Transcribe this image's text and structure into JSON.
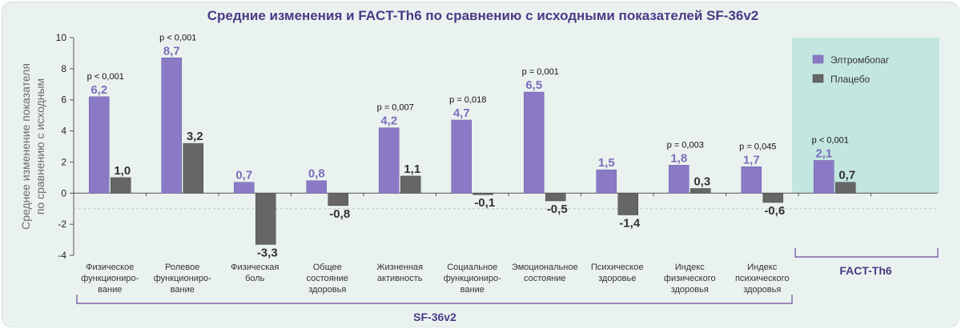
{
  "chart_data": {
    "type": "bar",
    "title": "Средние изменения и FACT-Th6  по сравнению с исходными показателей SF-36v2",
    "ylabel_line1": "Среднее изменение показателя",
    "ylabel_line2": "по сравнению с исходным",
    "ylim": [
      -4,
      10
    ],
    "yticks": [
      -4,
      -2,
      0,
      2,
      4,
      6,
      8,
      10
    ],
    "ytick_labels": [
      "-4",
      "-2",
      "0",
      "2",
      "4",
      "6",
      "8",
      "10"
    ],
    "grid": false,
    "legend_position": "top-right",
    "categories": [
      [
        "Физическое",
        "функциониро-",
        "вание"
      ],
      [
        "Ролевое",
        "функциониро-",
        "вание"
      ],
      [
        "Физическая",
        "боль"
      ],
      [
        "Общее",
        "состояние",
        "здоровья"
      ],
      [
        "Жизненная",
        "активность"
      ],
      [
        "Социальное",
        "функциониро-",
        "вание"
      ],
      [
        "Эмоциональное",
        "состояние"
      ],
      [
        "Психическое",
        "здоровье"
      ],
      [
        "Индекс",
        "физического",
        "здоровья"
      ],
      [
        "Индекс",
        "психического",
        "здоровья"
      ],
      []
    ],
    "series": [
      {
        "name": "Элтромбопаг",
        "color": "#8a7ac6",
        "values": [
          6.2,
          8.7,
          0.7,
          0.8,
          4.2,
          4.7,
          6.5,
          1.5,
          1.8,
          1.7,
          2.1
        ],
        "labels": [
          "6,2",
          "8,7",
          "0,7",
          "0,8",
          "4,2",
          "4,7",
          "6,5",
          "1,5",
          "1,8",
          "1,7",
          "2,1"
        ]
      },
      {
        "name": "Плацебо",
        "color": "#666666",
        "values": [
          1.0,
          3.2,
          -3.3,
          -0.8,
          1.1,
          -0.1,
          -0.5,
          -1.4,
          0.3,
          -0.6,
          0.7
        ],
        "labels": [
          "1,0",
          "3,2",
          "-3,3",
          "-0,8",
          "1,1",
          "-0,1",
          "-0,5",
          "-1,4",
          "0,3",
          "-0,6",
          "0,7"
        ]
      }
    ],
    "p_values": [
      "p < 0,001",
      "p < 0,001",
      "",
      "",
      "p = 0,007",
      "p = 0,018",
      "p = 0,001",
      "",
      "p = 0,003",
      "p = 0,045",
      "p < 0,001"
    ],
    "groups": [
      {
        "label": "SF-36v2"
      },
      {
        "label": "FACT-Th6"
      }
    ]
  },
  "colors": {
    "background": "#eaf2ef",
    "fact_panel": "#c3e6e0",
    "accent": "#4a3a86"
  }
}
